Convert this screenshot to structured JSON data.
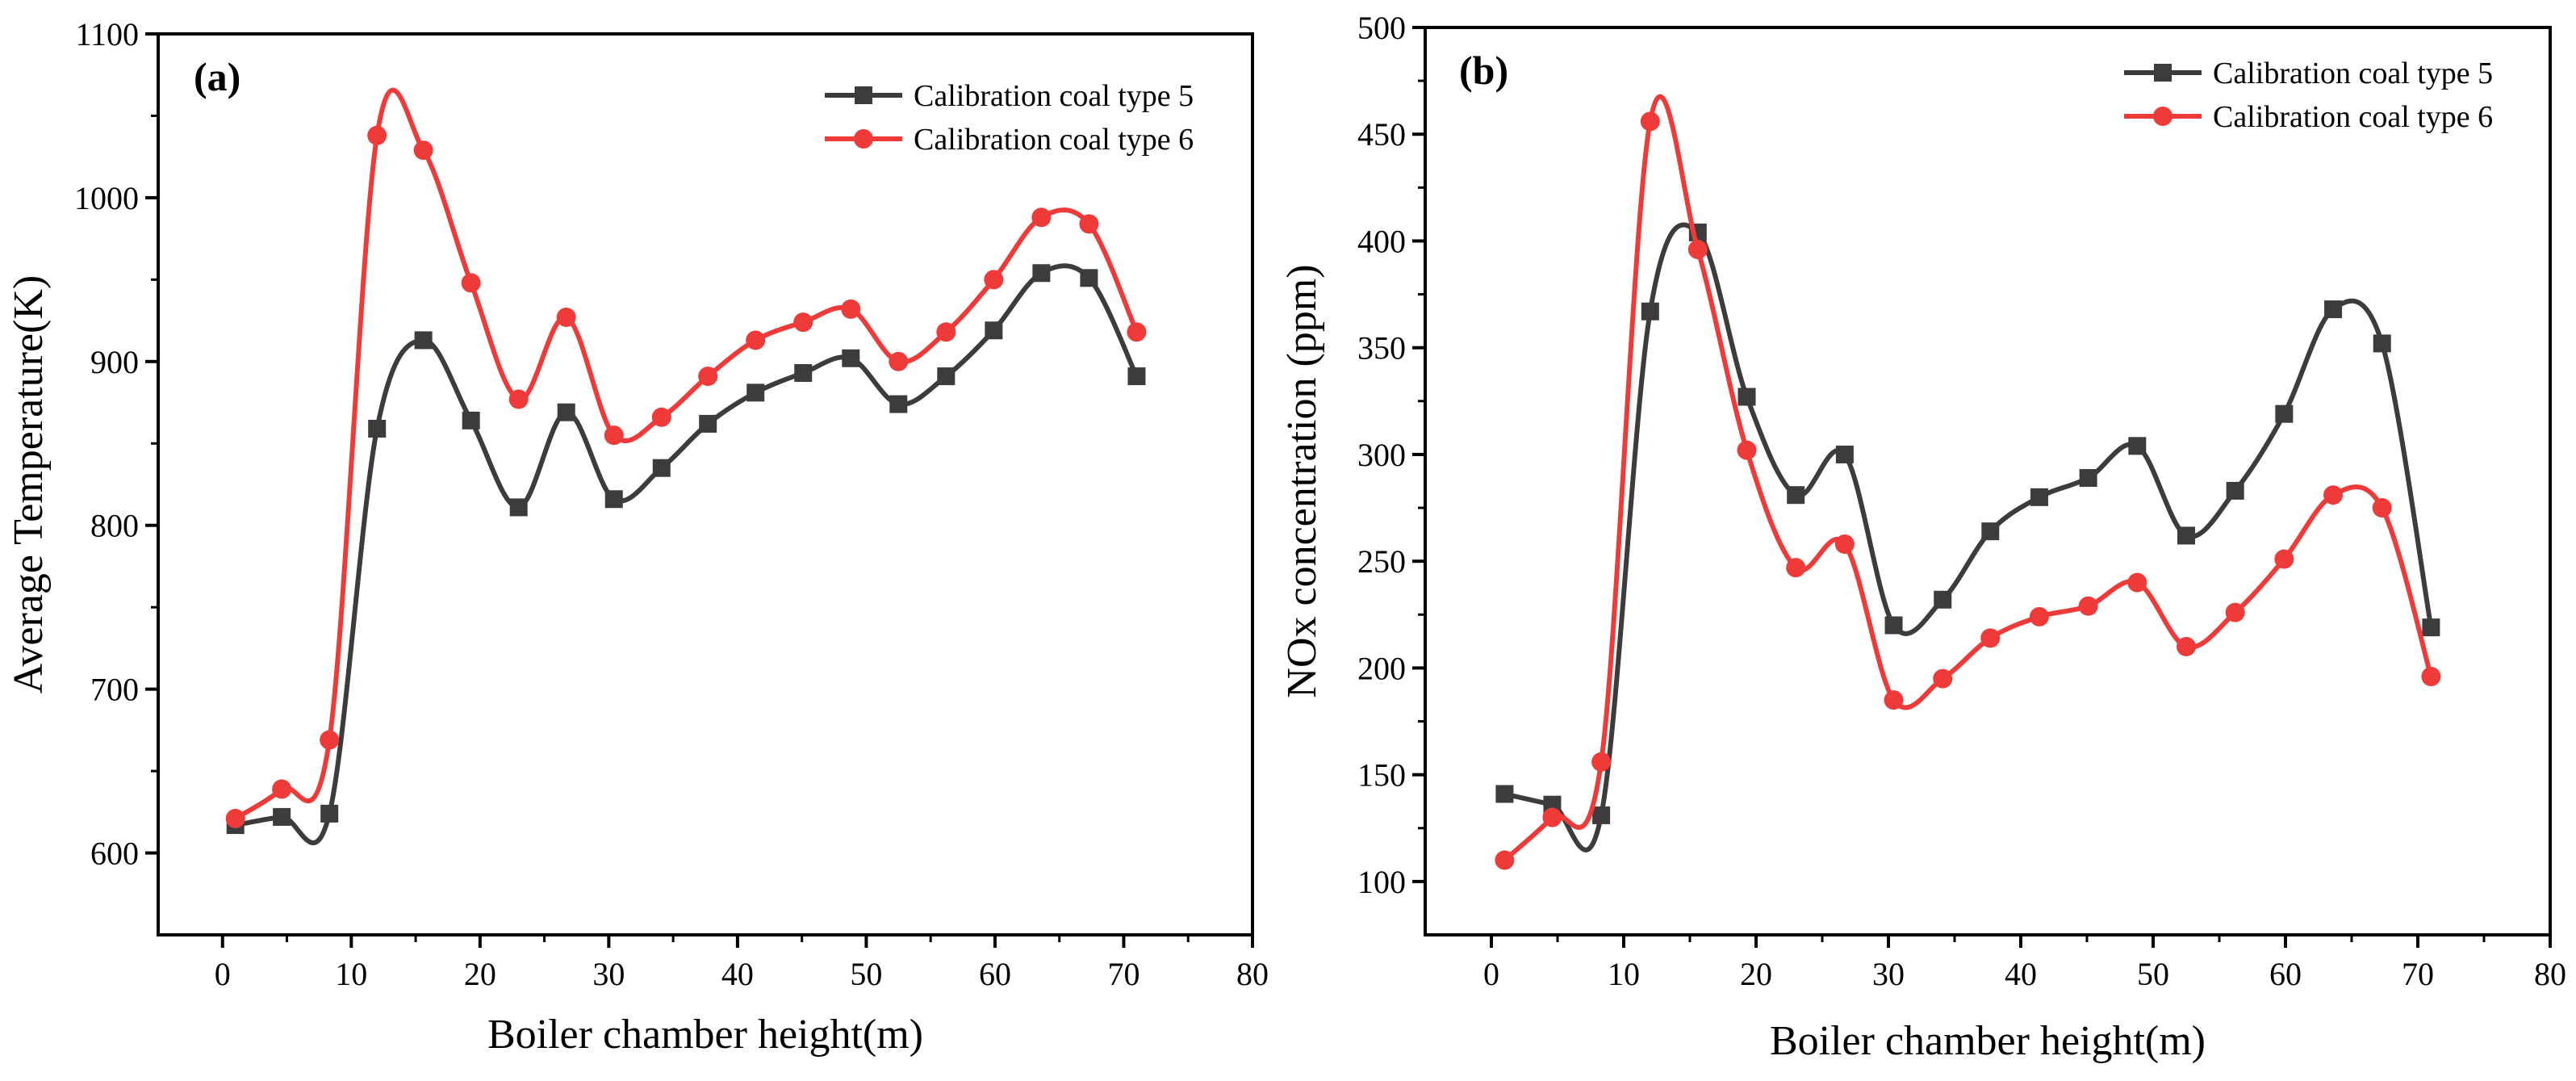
{
  "colors": {
    "series_1": "#3c3c3c",
    "series_2": "#ef3a3a",
    "axis": "#000000",
    "background": "#ffffff"
  },
  "chart_data": [
    {
      "type": "line",
      "panel_label": "(a)",
      "xlabel": "Boiler chamber height(m)",
      "ylabel": "Average Temperature(K)",
      "xlim": [
        -5,
        80
      ],
      "ylim": [
        550,
        1100
      ],
      "xticks": [
        0,
        10,
        20,
        30,
        40,
        50,
        60,
        70,
        80
      ],
      "yticks": [
        600,
        700,
        800,
        900,
        1000,
        1100
      ],
      "grid": false,
      "legend_position": "top-right",
      "x": [
        1,
        4.6,
        8.3,
        12,
        15.6,
        19.3,
        23,
        26.7,
        30.4,
        34.1,
        37.7,
        41.4,
        45.1,
        48.8,
        52.5,
        56.2,
        59.9,
        63.6,
        67.3,
        71
      ],
      "series": [
        {
          "name": "Calibration coal type 5",
          "marker": "square",
          "values": [
            617,
            622,
            624,
            859,
            913,
            864,
            811,
            869,
            816,
            835,
            862,
            881,
            893,
            902,
            874,
            891,
            919,
            954,
            951,
            891
          ]
        },
        {
          "name": "Calibration coal type 6",
          "marker": "circle",
          "values": [
            621,
            639,
            669,
            1038,
            1029,
            948,
            877,
            927,
            855,
            866,
            891,
            913,
            924,
            932,
            900,
            918,
            950,
            988,
            984,
            918
          ]
        }
      ]
    },
    {
      "type": "line",
      "panel_label": "(b)",
      "xlabel": "Boiler chamber height(m)",
      "ylabel": "NOx concentration (ppm)",
      "xlim": [
        -5,
        80
      ],
      "ylim": [
        75,
        500
      ],
      "xticks": [
        0,
        10,
        20,
        30,
        40,
        50,
        60,
        70,
        80
      ],
      "yticks": [
        100,
        150,
        200,
        250,
        300,
        350,
        400,
        450,
        500
      ],
      "grid": false,
      "legend_position": "top-right",
      "x": [
        1,
        4.6,
        8.3,
        12,
        15.6,
        19.3,
        23,
        26.7,
        30.4,
        34.1,
        37.7,
        41.4,
        45.1,
        48.8,
        52.5,
        56.2,
        59.9,
        63.6,
        67.3,
        71
      ],
      "series": [
        {
          "name": "Calibration coal type 5",
          "marker": "square",
          "values": [
            141,
            136,
            131,
            367,
            404,
            327,
            281,
            300,
            220,
            232,
            264,
            280,
            289,
            304,
            262,
            283,
            319,
            368,
            352,
            219
          ]
        },
        {
          "name": "Calibration coal type 6",
          "marker": "circle",
          "values": [
            110,
            130,
            156,
            456,
            396,
            302,
            247,
            258,
            185,
            195,
            214,
            224,
            229,
            240,
            210,
            226,
            251,
            281,
            275,
            196
          ]
        }
      ]
    }
  ]
}
